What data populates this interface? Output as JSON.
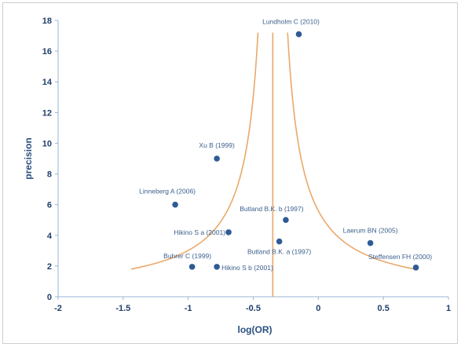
{
  "chart_data": {
    "type": "scatter",
    "xlabel": "log(OR)",
    "ylabel": "precision",
    "xlim": [
      -2,
      1
    ],
    "ylim": [
      0,
      18
    ],
    "xticks": [
      "-2",
      "-1.5",
      "-1",
      "-0.5",
      "0",
      "0.5",
      "1"
    ],
    "yticks": [
      "0",
      "2",
      "4",
      "6",
      "8",
      "10",
      "12",
      "14",
      "16",
      "18"
    ],
    "grid": false,
    "legend": "none",
    "points": [
      {
        "label": "Lundholm C (2010)",
        "x": -0.15,
        "y": 17.1
      },
      {
        "label": "Xu B (1999)",
        "x": -0.78,
        "y": 9.0
      },
      {
        "label": "Linneberg A (2006)",
        "x": -1.1,
        "y": 6.0
      },
      {
        "label": "Butland B.K. b (1997)",
        "x": -0.25,
        "y": 5.0
      },
      {
        "label": "Laerum BN (2005)",
        "x": 0.4,
        "y": 3.5
      },
      {
        "label": "Hikino S a (2001)",
        "x": -0.69,
        "y": 4.2
      },
      {
        "label": "Butland B.K. a (1997)",
        "x": -0.3,
        "y": 3.6
      },
      {
        "label": "Buhrer C (1999)",
        "x": -0.97,
        "y": 1.95
      },
      {
        "label": "Hikino S b (2001)",
        "x": -0.78,
        "y": 1.95
      },
      {
        "label": "Steffensen FH (2000)",
        "x": 0.75,
        "y": 1.9
      }
    ],
    "funnel": {
      "center_x": -0.35,
      "y_top": 17.2,
      "y_bottom": 1.8
    },
    "colors": {
      "points": "#2f5b95",
      "funnel": "#eaa86a",
      "axis": "#9ab4d4",
      "text": "#1f3f6b"
    }
  }
}
